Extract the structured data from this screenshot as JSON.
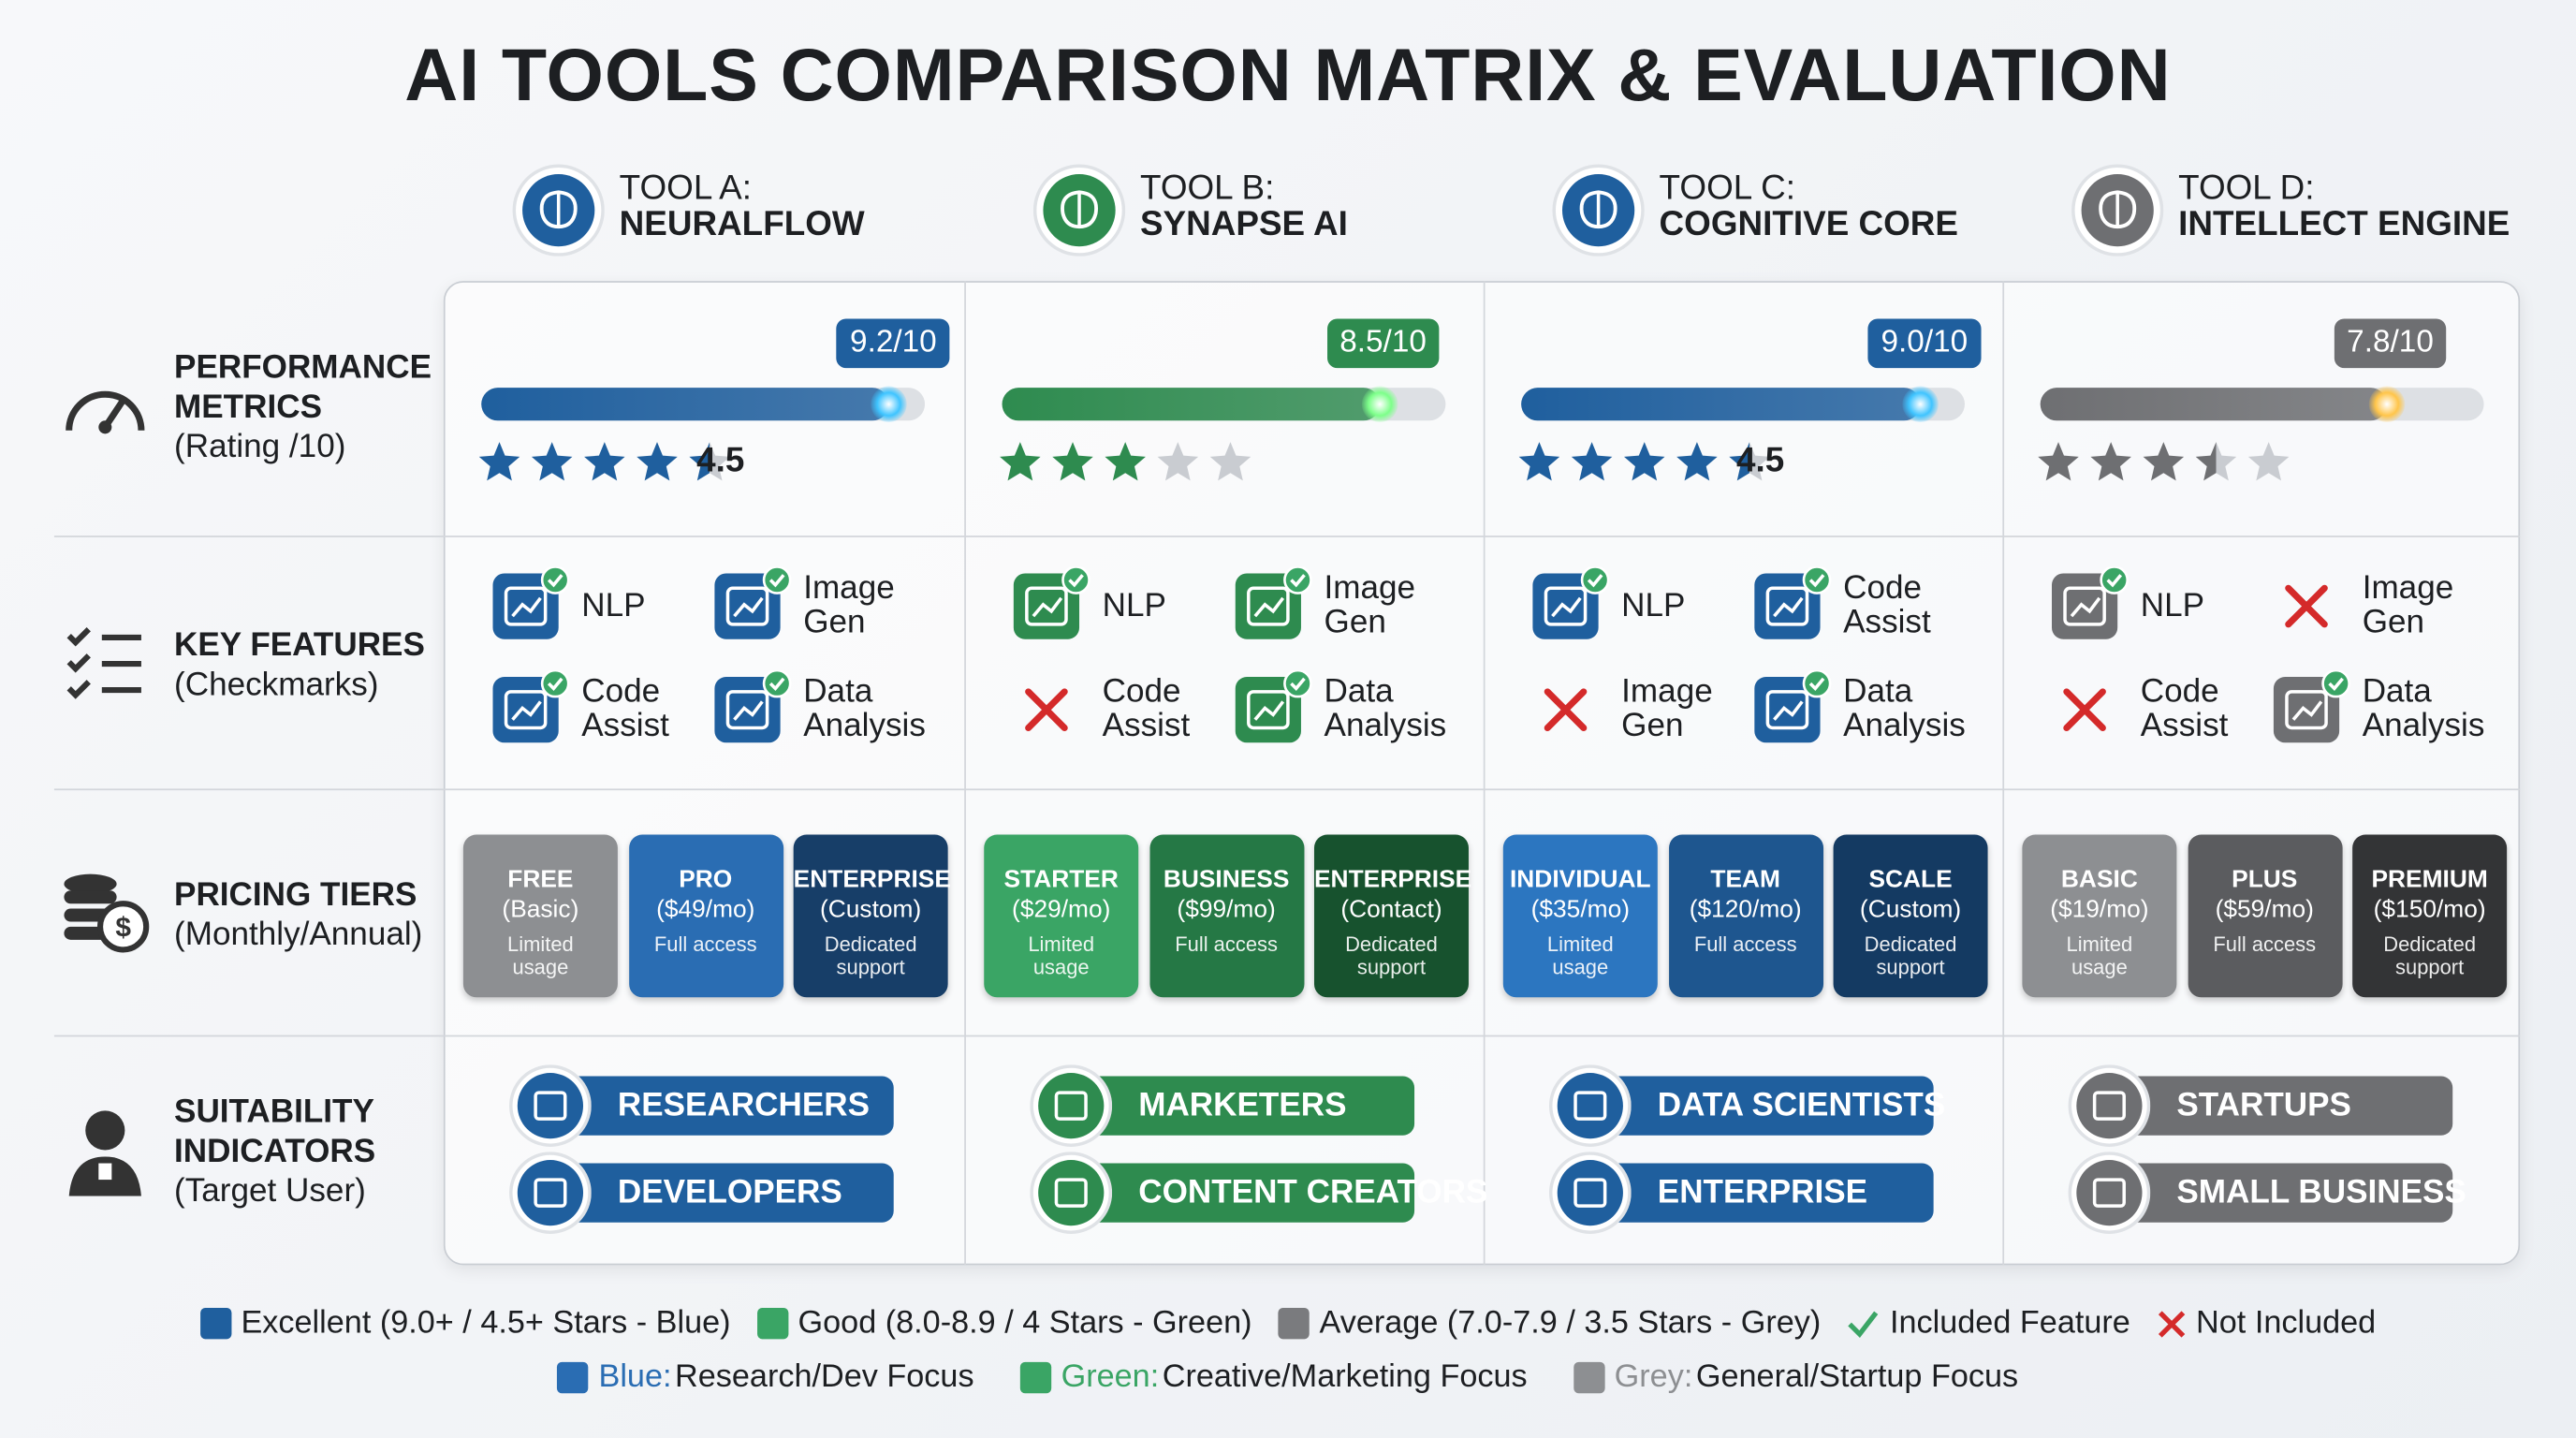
{
  "title": "AI TOOLS COMPARISON MATRIX & EVALUATION",
  "score_max": 10,
  "star_max": 5,
  "rows": [
    {
      "title": "PERFORMANCE METRICS",
      "subtitle": "(Rating /10)"
    },
    {
      "title": "KEY FEATURES",
      "subtitle": "(Checkmarks)"
    },
    {
      "title": "PRICING TIERS",
      "subtitle": "(Monthly/Annual)"
    },
    {
      "title": "SUITABILITY INDICATORS",
      "subtitle": "(Target User)"
    }
  ],
  "tools": [
    {
      "label": "TOOL A:",
      "name": "NEURALFLOW",
      "color": "#1f5f9e",
      "glow": "#3fc4ff",
      "score": 9.2,
      "score_label": "9.2/10",
      "stars": 4.5,
      "stars_label": "4.5",
      "features": [
        {
          "name": "NLP",
          "included": true
        },
        {
          "name": "Image Gen",
          "included": true
        },
        {
          "name": "Code Assist",
          "included": true
        },
        {
          "name": "Data Analysis",
          "included": true
        }
      ],
      "tiers": [
        {
          "name": "FREE",
          "price": "(Basic)",
          "note": "Limited usage",
          "color": "#8d8f92"
        },
        {
          "name": "PRO",
          "price": "($49/mo)",
          "note": "Full access",
          "color": "#2a6db3"
        },
        {
          "name": "ENTERPRISE",
          "price": "(Custom)",
          "note": "Dedicated support",
          "color": "#173e68"
        }
      ],
      "users": [
        "RESEARCHERS",
        "DEVELOPERS"
      ]
    },
    {
      "label": "TOOL B:",
      "name": "SYNAPSE AI",
      "color": "#2e8b4f",
      "glow": "#7dff8a",
      "score": 8.5,
      "score_label": "8.5/10",
      "stars": 3,
      "features": [
        {
          "name": "NLP",
          "included": true
        },
        {
          "name": "Image Gen",
          "included": true
        },
        {
          "name": "Code Assist",
          "included": false
        },
        {
          "name": "Data Analysis",
          "included": true
        }
      ],
      "tiers": [
        {
          "name": "STARTER",
          "price": "($29/mo)",
          "note": "Limited usage",
          "color": "#3aa565"
        },
        {
          "name": "BUSINESS",
          "price": "($99/mo)",
          "note": "Full access",
          "color": "#257845"
        },
        {
          "name": "ENTERPRISE",
          "price": "(Contact)",
          "note": "Dedicated support",
          "color": "#17522e"
        }
      ],
      "users": [
        "MARKETERS",
        "CONTENT CREATORS"
      ]
    },
    {
      "label": "TOOL C:",
      "name": "COGNITIVE CORE",
      "color": "#1f5f9e",
      "glow": "#3fc4ff",
      "score": 9.0,
      "score_label": "9.0/10",
      "stars": 4.5,
      "stars_label": "4.5",
      "features": [
        {
          "name": "NLP",
          "included": true
        },
        {
          "name": "Code Assist",
          "included": true
        },
        {
          "name": "Image Gen",
          "included": false
        },
        {
          "name": "Data Analysis",
          "included": true
        }
      ],
      "tiers": [
        {
          "name": "INDIVIDUAL",
          "price": "($35/mo)",
          "note": "Limited usage",
          "color": "#2c76c0"
        },
        {
          "name": "TEAM",
          "price": "($120/mo)",
          "note": "Full access",
          "color": "#1e568f"
        },
        {
          "name": "SCALE",
          "price": "(Custom)",
          "note": "Dedicated support",
          "color": "#143a62"
        }
      ],
      "users": [
        "DATA SCIENTISTS",
        "ENTERPRISE"
      ]
    },
    {
      "label": "TOOL D:",
      "name": "INTELLECT ENGINE",
      "color": "#6e6f72",
      "glow": "#ffc54a",
      "score": 7.8,
      "score_label": "7.8/10",
      "stars": 3.5,
      "features": [
        {
          "name": "NLP",
          "included": true
        },
        {
          "name": "Image Gen",
          "included": false
        },
        {
          "name": "Code Assist",
          "included": false
        },
        {
          "name": "Data Analysis",
          "included": true
        }
      ],
      "tiers": [
        {
          "name": "BASIC",
          "price": "($19/mo)",
          "note": "Limited usage",
          "color": "#8d8f92"
        },
        {
          "name": "PLUS",
          "price": "($59/mo)",
          "note": "Full access",
          "color": "#5b5c5f"
        },
        {
          "name": "PREMIUM",
          "price": "($150/mo)",
          "note": "Dedicated support",
          "color": "#333436"
        }
      ],
      "users": [
        "STARTUPS",
        "SMALL BUSINESS"
      ]
    }
  ],
  "legend": [
    {
      "text": "Excellent (9.0+ / 4.5+ Stars - Blue)",
      "color": "#1f5f9e"
    },
    {
      "text": "Good (8.0-8.9 / 4 Stars - Green)",
      "color": "#3aa565"
    },
    {
      "text": "Average (7.0-7.9 / 3.5 Stars - Grey)",
      "color": "#7a7b7e"
    },
    {
      "text": "Included Feature",
      "symbol": "check"
    },
    {
      "text": "Not Included",
      "symbol": "cross"
    }
  ],
  "legend2": [
    {
      "key": "Blue:",
      "text": "Research/Dev Focus",
      "color": "#2a6db3"
    },
    {
      "key": "Green:",
      "text": "Creative/Marketing Focus",
      "color": "#3aa565"
    },
    {
      "key": "Grey:",
      "text": "General/Startup Focus",
      "color": "#8d8f92"
    }
  ]
}
